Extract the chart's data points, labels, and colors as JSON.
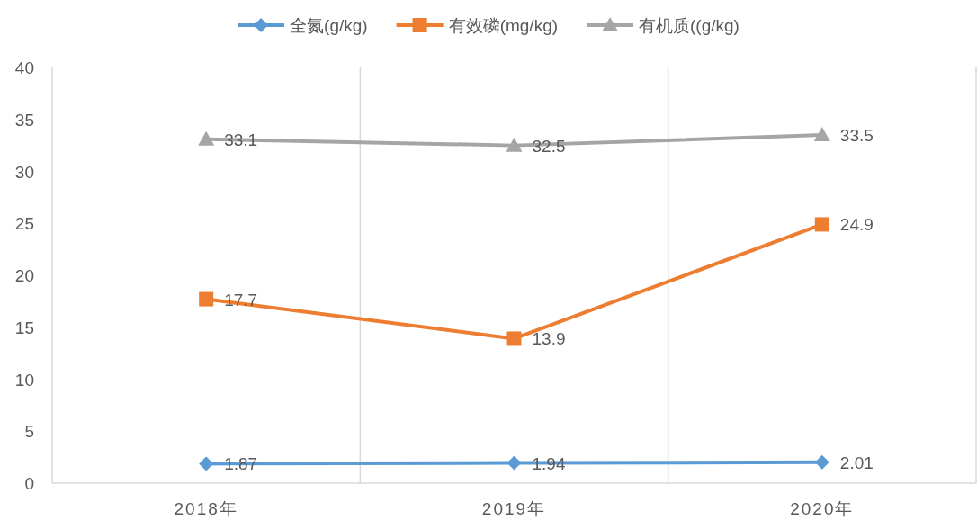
{
  "chart_data": {
    "type": "line",
    "categories": [
      "2018年",
      "2019年",
      "2020年"
    ],
    "series": [
      {
        "name": "全氮(g/kg)",
        "color": "#5b9bd5",
        "marker": "diamond",
        "values": [
          1.87,
          1.94,
          2.01
        ]
      },
      {
        "name": "有效磷(mg/kg)",
        "color": "#ed7d31",
        "marker": "square",
        "values": [
          17.7,
          13.9,
          24.9
        ]
      },
      {
        "name": "有机质((g/kg)",
        "color": "#a5a5a5",
        "marker": "triangle",
        "values": [
          33.1,
          32.5,
          33.5
        ]
      }
    ],
    "ylim": [
      0,
      40
    ],
    "yticks": [
      0,
      5,
      10,
      15,
      20,
      25,
      30,
      35,
      40
    ],
    "grid": "x",
    "legend": "top",
    "data_labels": true
  }
}
